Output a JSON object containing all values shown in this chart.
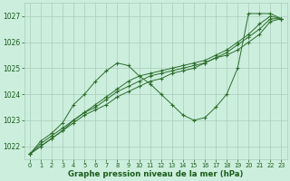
{
  "title": "Graphe pression niveau de la mer (hPa)",
  "background_color": "#cceedd",
  "grid_color": "#aaccbb",
  "line_color": "#2d6e2d",
  "text_color": "#1a5c1a",
  "ylim": [
    1021.5,
    1027.5
  ],
  "xlim": [
    -0.5,
    23.5
  ],
  "yticks": [
    1022,
    1023,
    1024,
    1025,
    1026,
    1027
  ],
  "xticks": [
    0,
    1,
    2,
    3,
    4,
    5,
    6,
    7,
    8,
    9,
    10,
    11,
    12,
    13,
    14,
    15,
    16,
    17,
    18,
    19,
    20,
    21,
    22,
    23
  ],
  "series": [
    {
      "x": [
        0,
        1,
        2,
        3,
        4,
        5,
        6,
        7,
        8,
        9,
        10,
        11,
        12,
        13,
        14,
        15,
        16,
        17,
        18,
        19,
        20,
        21,
        22,
        23
      ],
      "y": [
        1021.7,
        1022.0,
        1022.3,
        1022.6,
        1022.9,
        1023.2,
        1023.4,
        1023.6,
        1023.9,
        1024.1,
        1024.3,
        1024.5,
        1024.6,
        1024.8,
        1024.9,
        1025.0,
        1025.2,
        1025.4,
        1025.5,
        1025.7,
        1026.0,
        1026.3,
        1026.8,
        1026.9
      ]
    },
    {
      "x": [
        0,
        1,
        2,
        3,
        4,
        5,
        6,
        7,
        8,
        9,
        10,
        11,
        12,
        13,
        14,
        15,
        16,
        17,
        18,
        19,
        20,
        21,
        22,
        23
      ],
      "y": [
        1021.7,
        1022.0,
        1022.3,
        1022.6,
        1023.0,
        1023.3,
        1023.5,
        1023.8,
        1024.1,
        1024.3,
        1024.5,
        1024.7,
        1024.8,
        1024.9,
        1025.0,
        1025.1,
        1025.2,
        1025.4,
        1025.6,
        1025.9,
        1026.2,
        1026.5,
        1026.9,
        1026.9
      ]
    },
    {
      "x": [
        0,
        1,
        2,
        3,
        4,
        5,
        6,
        7,
        8,
        9,
        10,
        11,
        12,
        13,
        14,
        15,
        16,
        17,
        18,
        19,
        20,
        21,
        22,
        23
      ],
      "y": [
        1021.7,
        1022.1,
        1022.4,
        1022.7,
        1023.0,
        1023.3,
        1023.6,
        1023.9,
        1024.2,
        1024.5,
        1024.7,
        1024.8,
        1024.9,
        1025.0,
        1025.1,
        1025.2,
        1025.3,
        1025.5,
        1025.7,
        1026.0,
        1026.3,
        1026.7,
        1027.0,
        1026.9
      ]
    },
    {
      "x": [
        0,
        1,
        2,
        3,
        4,
        5,
        6,
        7,
        8,
        9,
        10,
        11,
        12,
        13,
        14,
        15,
        16,
        17,
        18,
        19,
        20,
        21,
        22,
        23
      ],
      "y": [
        1021.7,
        1022.2,
        1022.5,
        1022.9,
        1023.6,
        1024.0,
        1024.5,
        1024.9,
        1025.2,
        1025.1,
        1024.7,
        1024.4,
        1024.0,
        1023.6,
        1023.2,
        1023.0,
        1023.1,
        1023.5,
        1024.0,
        1025.0,
        1027.1,
        1027.1,
        1027.1,
        1026.9
      ]
    }
  ]
}
